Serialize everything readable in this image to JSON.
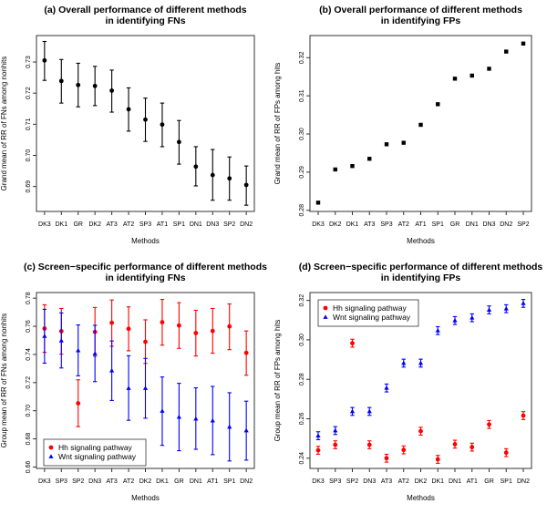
{
  "chart_data": [
    {
      "type": "scatter",
      "panel": "a",
      "title": [
        "(a) Overall performance of different methods",
        "in identifying FNs"
      ],
      "xlabel": "Methods",
      "ylabel": "Grand mean of RR of FNs among nonhits",
      "ylim": [
        0.682,
        0.7385
      ],
      "yticks": [
        "0.69",
        "0.70",
        "0.71",
        "0.72",
        "0.73"
      ],
      "categories": [
        "DK3",
        "DK1",
        "GR",
        "DK2",
        "AT3",
        "AT2",
        "SP3",
        "AT1",
        "SP1",
        "DN1",
        "DN3",
        "SP2",
        "DN2"
      ],
      "series": [
        {
          "name": "Overall",
          "color": "#000000",
          "marker": "circle",
          "values": [
            0.7305,
            0.7239,
            0.7226,
            0.7223,
            0.7208,
            0.7148,
            0.7115,
            0.7099,
            0.7043,
            0.6964,
            0.6937,
            0.6926,
            0.6905
          ],
          "lower": [
            0.7241,
            0.7168,
            0.7156,
            0.716,
            0.7139,
            0.7078,
            0.7045,
            0.7028,
            0.6972,
            0.6902,
            0.6856,
            0.6856,
            0.684
          ],
          "upper": [
            0.7366,
            0.7308,
            0.7296,
            0.7286,
            0.7274,
            0.7217,
            0.7184,
            0.7168,
            0.7112,
            0.7028,
            0.7019,
            0.6995,
            0.6966
          ]
        }
      ],
      "grid": false
    },
    {
      "type": "scatter",
      "panel": "b",
      "title": [
        "(b) Overall performance of different methods",
        "in identifying FPs"
      ],
      "xlabel": "Methods",
      "ylabel": "Grand mean of RR of FPs among hits",
      "ylim": [
        0.2797,
        0.3258
      ],
      "yticks": [
        "0.28",
        "0.29",
        "0.30",
        "0.31",
        "0.32"
      ],
      "categories": [
        "DK3",
        "DK2",
        "DK1",
        "AT3",
        "SP3",
        "AT2",
        "AT1",
        "SP1",
        "GR",
        "DN1",
        "DN3",
        "DN2",
        "SP2"
      ],
      "series": [
        {
          "name": "Overall",
          "color": "#000000",
          "marker": "square",
          "values": [
            0.282,
            0.2907,
            0.2916,
            0.2935,
            0.2973,
            0.2977,
            0.3024,
            0.3078,
            0.3145,
            0.3153,
            0.3171,
            0.3216,
            0.3237
          ]
        }
      ],
      "grid": false
    },
    {
      "type": "scatter",
      "panel": "c",
      "title": [
        "(c) Screen−specific performance of different methods",
        "in identifying FNs"
      ],
      "xlabel": "Methods",
      "ylabel": "Group mean of RR of FNs among nonhits",
      "ylim": [
        0.659,
        0.784
      ],
      "yticks": [
        "0.66",
        "0.68",
        "0.70",
        "0.72",
        "0.74",
        "0.76",
        "0.78"
      ],
      "categories": [
        "DK3",
        "SP3",
        "SP2",
        "DN3",
        "AT3",
        "AT2",
        "DK2",
        "DK1",
        "GR",
        "DN1",
        "AT1",
        "SP1",
        "DN2"
      ],
      "legend": {
        "position": "bottom-left"
      },
      "series": [
        {
          "name": "Hh signaling pathway",
          "color": "#ff0000",
          "marker": "circle",
          "values": [
            0.7584,
            0.7565,
            0.7053,
            0.756,
            0.7625,
            0.7582,
            0.749,
            0.7629,
            0.7606,
            0.7552,
            0.7567,
            0.7599,
            0.7411
          ],
          "lower": [
            0.7415,
            0.7402,
            0.6887,
            0.7387,
            0.7458,
            0.7426,
            0.7336,
            0.7466,
            0.7443,
            0.7389,
            0.7409,
            0.7434,
            0.7252
          ],
          "upper": [
            0.7753,
            0.7727,
            0.722,
            0.7734,
            0.7787,
            0.7738,
            0.7646,
            0.7791,
            0.7768,
            0.7714,
            0.7727,
            0.7759,
            0.7567
          ]
        },
        {
          "name": "Wnt signaling pathway",
          "color": "#0000ff",
          "marker": "triangle",
          "values": [
            0.753,
            0.7498,
            0.7428,
            0.7406,
            0.7285,
            0.716,
            0.716,
            0.6998,
            0.6955,
            0.6942,
            0.6929,
            0.6885,
            0.6859
          ],
          "lower": [
            0.7338,
            0.7304,
            0.7248,
            0.7207,
            0.7073,
            0.6932,
            0.6947,
            0.6754,
            0.6716,
            0.6726,
            0.6688,
            0.6643,
            0.6649
          ],
          "upper": [
            0.7721,
            0.7695,
            0.761,
            0.7607,
            0.7496,
            0.7391,
            0.7372,
            0.724,
            0.7195,
            0.7163,
            0.7173,
            0.7128,
            0.7068
          ]
        }
      ],
      "grid": false
    },
    {
      "type": "scatter",
      "panel": "d",
      "title": [
        "(d) Screen−specific performance of different methods",
        "in identifying FPs"
      ],
      "xlabel": "Methods",
      "ylabel": "Group mean of RR of FPs among hits",
      "ylim": [
        0.2348,
        0.324
      ],
      "yticks": [
        "0.24",
        "0.26",
        "0.28",
        "0.30",
        "0.32"
      ],
      "categories": [
        "DK3",
        "SP3",
        "SP2",
        "DN3",
        "AT3",
        "AT2",
        "DK2",
        "DK1",
        "DN1",
        "AT1",
        "GR",
        "SP1",
        "DN2"
      ],
      "legend": {
        "position": "top-left"
      },
      "series": [
        {
          "name": "Hh signaling pathway",
          "color": "#ff0000",
          "marker": "circle",
          "values": [
            0.244,
            0.2468,
            0.2983,
            0.2468,
            0.24,
            0.2442,
            0.2537,
            0.2394,
            0.2471,
            0.2456,
            0.2571,
            0.2428,
            0.2616
          ],
          "lower": [
            0.242,
            0.2448,
            0.2963,
            0.2448,
            0.238,
            0.2422,
            0.2517,
            0.2374,
            0.2451,
            0.2436,
            0.2551,
            0.2408,
            0.2596
          ],
          "upper": [
            0.246,
            0.2488,
            0.3003,
            0.2488,
            0.242,
            0.2462,
            0.2557,
            0.2414,
            0.2491,
            0.2476,
            0.2591,
            0.2448,
            0.2636
          ]
        },
        {
          "name": "Wnt signaling pathway",
          "color": "#0000ff",
          "marker": "triangle",
          "values": [
            0.2514,
            0.254,
            0.2637,
            0.2637,
            0.2756,
            0.2882,
            0.2882,
            0.3047,
            0.3098,
            0.3112,
            0.3152,
            0.3158,
            0.3185
          ],
          "lower": [
            0.2494,
            0.252,
            0.2617,
            0.2617,
            0.2736,
            0.2862,
            0.2862,
            0.3027,
            0.3078,
            0.3092,
            0.3132,
            0.3138,
            0.3165
          ],
          "upper": [
            0.2534,
            0.256,
            0.2657,
            0.2657,
            0.2776,
            0.2902,
            0.2902,
            0.3067,
            0.3118,
            0.3132,
            0.3172,
            0.3178,
            0.3205
          ]
        }
      ],
      "grid": false
    }
  ]
}
